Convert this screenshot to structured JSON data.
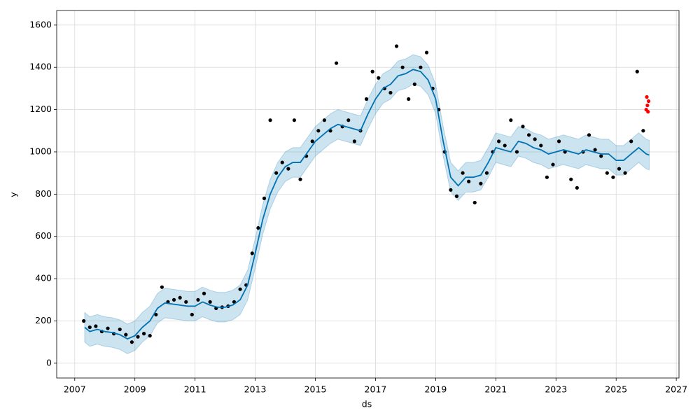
{
  "chart_data": {
    "type": "line",
    "x_label": "ds",
    "y_label": "y",
    "xlim": [
      2006.4,
      2027.09
    ],
    "ylim": [
      -70,
      1669
    ],
    "xticks": [
      2007,
      2009,
      2011,
      2013,
      2015,
      2017,
      2019,
      2021,
      2023,
      2025,
      2027
    ],
    "yticks": [
      0,
      200,
      400,
      600,
      800,
      1000,
      1200,
      1400,
      1600
    ],
    "grid": true,
    "x": [
      2007.33,
      2007.5,
      2007.75,
      2008,
      2008.25,
      2008.5,
      2008.75,
      2009,
      2009.25,
      2009.5,
      2009.75,
      2010,
      2010.25,
      2010.5,
      2010.75,
      2011,
      2011.25,
      2011.5,
      2011.75,
      2012,
      2012.25,
      2012.5,
      2012.75,
      2013,
      2013.25,
      2013.5,
      2013.75,
      2014,
      2014.25,
      2014.5,
      2014.75,
      2015,
      2015.25,
      2015.5,
      2015.75,
      2016,
      2016.25,
      2016.5,
      2016.75,
      2017,
      2017.25,
      2017.5,
      2017.75,
      2018,
      2018.25,
      2018.5,
      2018.75,
      2019,
      2019.25,
      2019.5,
      2019.75,
      2020,
      2020.25,
      2020.5,
      2020.75,
      2021,
      2021.25,
      2021.5,
      2021.75,
      2022,
      2022.25,
      2022.5,
      2022.75,
      2023,
      2023.25,
      2023.5,
      2023.75,
      2024,
      2024.25,
      2024.5,
      2024.75,
      2025,
      2025.25,
      2025.5,
      2025.75,
      2026,
      2026.1
    ],
    "series": [
      {
        "color": "#0072B2",
        "values": [
          170,
          150,
          160,
          150,
          145,
          135,
          115,
          130,
          170,
          200,
          260,
          285,
          280,
          275,
          270,
          270,
          290,
          275,
          265,
          265,
          275,
          300,
          370,
          520,
          680,
          800,
          880,
          930,
          950,
          950,
          1000,
          1050,
          1080,
          1110,
          1130,
          1120,
          1110,
          1100,
          1180,
          1250,
          1300,
          1320,
          1360,
          1370,
          1390,
          1380,
          1340,
          1250,
          1050,
          880,
          840,
          880,
          880,
          890,
          950,
          1020,
          1010,
          1000,
          1050,
          1040,
          1020,
          1010,
          990,
          1000,
          1010,
          1000,
          990,
          1010,
          1000,
          990,
          990,
          960,
          960,
          990,
          1020,
          990,
          985
        ]
      }
    ],
    "band": {
      "color": "#0072B2",
      "lower": [
        100,
        80,
        90,
        80,
        75,
        65,
        45,
        60,
        100,
        130,
        190,
        215,
        210,
        205,
        200,
        200,
        220,
        205,
        195,
        195,
        205,
        230,
        300,
        450,
        610,
        730,
        810,
        860,
        880,
        880,
        930,
        980,
        1010,
        1040,
        1060,
        1050,
        1040,
        1030,
        1110,
        1180,
        1230,
        1250,
        1290,
        1300,
        1320,
        1310,
        1270,
        1180,
        980,
        810,
        770,
        810,
        810,
        820,
        880,
        950,
        940,
        930,
        980,
        970,
        950,
        940,
        920,
        930,
        940,
        930,
        920,
        940,
        930,
        920,
        920,
        890,
        890,
        920,
        950,
        920,
        915
      ],
      "upper": [
        240,
        220,
        230,
        220,
        215,
        205,
        185,
        200,
        240,
        270,
        330,
        355,
        350,
        345,
        340,
        340,
        360,
        345,
        335,
        335,
        345,
        370,
        440,
        590,
        750,
        870,
        950,
        1000,
        1020,
        1020,
        1070,
        1120,
        1150,
        1180,
        1200,
        1190,
        1180,
        1170,
        1250,
        1320,
        1370,
        1390,
        1430,
        1440,
        1460,
        1450,
        1410,
        1320,
        1120,
        950,
        910,
        950,
        950,
        960,
        1020,
        1090,
        1080,
        1070,
        1120,
        1110,
        1090,
        1080,
        1060,
        1070,
        1080,
        1070,
        1060,
        1080,
        1070,
        1060,
        1060,
        1030,
        1030,
        1060,
        1090,
        1060,
        1055
      ]
    },
    "points": {
      "color": "#000000",
      "x": [
        2007.3,
        2007.5,
        2007.7,
        2007.9,
        2008.1,
        2008.3,
        2008.5,
        2008.7,
        2008.9,
        2009.1,
        2009.3,
        2009.5,
        2009.7,
        2009.9,
        2010.1,
        2010.3,
        2010.5,
        2010.7,
        2010.9,
        2011.1,
        2011.3,
        2011.5,
        2011.7,
        2011.9,
        2012.1,
        2012.3,
        2012.5,
        2012.7,
        2012.9,
        2013.1,
        2013.3,
        2013.5,
        2013.7,
        2013.9,
        2014.1,
        2014.3,
        2014.5,
        2014.7,
        2014.9,
        2015.1,
        2015.3,
        2015.5,
        2015.7,
        2015.9,
        2016.1,
        2016.3,
        2016.5,
        2016.7,
        2016.9,
        2017.1,
        2017.3,
        2017.5,
        2017.7,
        2017.9,
        2018.1,
        2018.3,
        2018.5,
        2018.7,
        2018.9,
        2019.1,
        2019.3,
        2019.5,
        2019.7,
        2019.9,
        2020.1,
        2020.3,
        2020.5,
        2020.7,
        2020.9,
        2021.1,
        2021.3,
        2021.5,
        2021.7,
        2021.9,
        2022.1,
        2022.3,
        2022.5,
        2022.7,
        2022.9,
        2023.1,
        2023.3,
        2023.5,
        2023.7,
        2023.9,
        2024.1,
        2024.3,
        2024.5,
        2024.7,
        2024.9,
        2025.1,
        2025.3,
        2025.5,
        2025.7,
        2025.9
      ],
      "values": [
        200,
        170,
        175,
        150,
        165,
        140,
        160,
        135,
        100,
        125,
        140,
        130,
        230,
        360,
        290,
        300,
        310,
        290,
        230,
        300,
        330,
        290,
        260,
        265,
        270,
        290,
        350,
        370,
        520,
        640,
        780,
        1150,
        900,
        950,
        920,
        1150,
        870,
        980,
        1050,
        1100,
        1150,
        1100,
        1420,
        1120,
        1150,
        1050,
        1100,
        1250,
        1380,
        1350,
        1300,
        1280,
        1500,
        1400,
        1250,
        1320,
        1400,
        1470,
        1300,
        1200,
        1000,
        820,
        790,
        900,
        860,
        760,
        850,
        900,
        1000,
        1050,
        1030,
        1150,
        1000,
        1120,
        1080,
        1060,
        1030,
        880,
        940,
        1050,
        1000,
        870,
        830,
        1000,
        1080,
        1010,
        980,
        900,
        880,
        920,
        900,
        1050,
        1380,
        1100
      ]
    },
    "recent": {
      "color": "#ff0000",
      "x": [
        2026.0,
        2026.02,
        2026.04,
        2026.06,
        2026.08
      ],
      "values": [
        1200,
        1260,
        1220,
        1190,
        1240
      ]
    }
  }
}
